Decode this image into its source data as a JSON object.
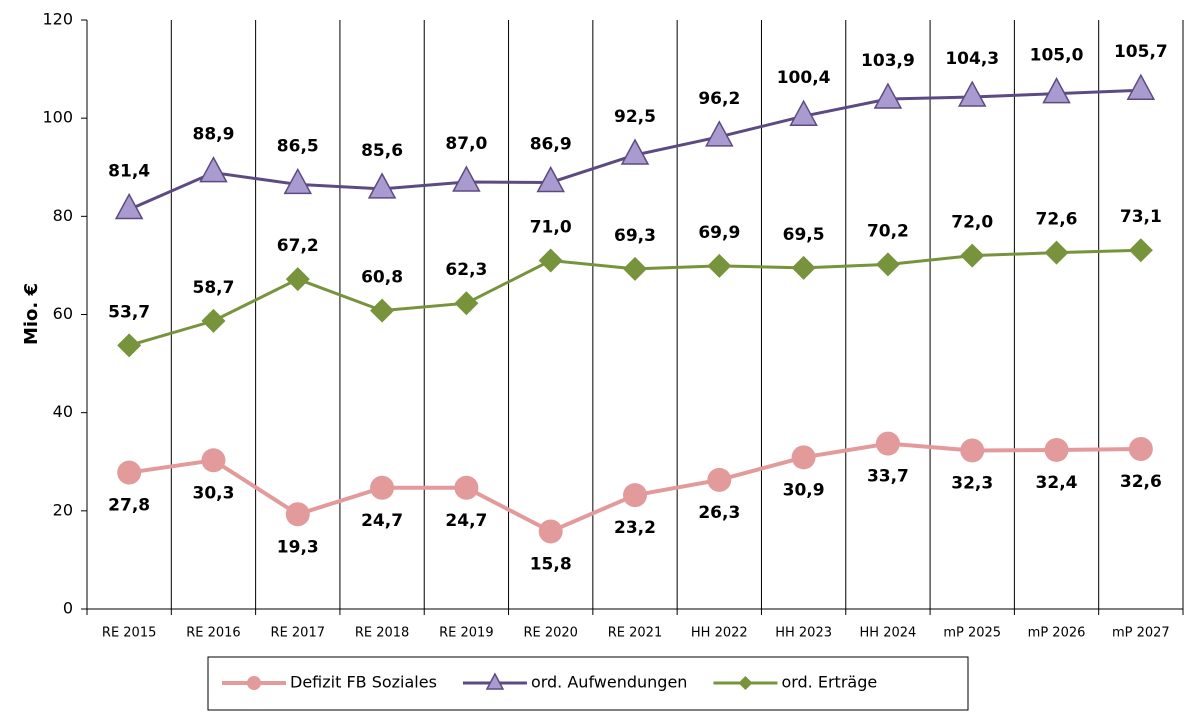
{
  "chart_data": {
    "type": "line",
    "y_label": "Mio. €",
    "categories": [
      "RE 2015",
      "RE 2016",
      "RE 2017",
      "RE 2018",
      "RE 2019",
      "RE 2020",
      "RE 2021",
      "HH 2022",
      "HH 2023",
      "HH 2024",
      "mP 2025",
      "mP 2026",
      "mP 2027"
    ],
    "series": [
      {
        "name": "Defizit FB Soziales",
        "color": "#e39a9b",
        "marker": "circle",
        "label_position": "below",
        "values": [
          27.8,
          30.3,
          19.3,
          24.7,
          24.7,
          15.8,
          23.2,
          26.3,
          30.9,
          33.7,
          32.3,
          32.4,
          32.6
        ],
        "value_labels": [
          "27,8",
          "30,3",
          "19,3",
          "24,7",
          "24,7",
          "15,8",
          "23,2",
          "26,3",
          "30,9",
          "33,7",
          "32,3",
          "32,4",
          "32,6"
        ]
      },
      {
        "name": "ord. Aufwendungen",
        "color": "#5d4a82",
        "marker_fill": "#a99bd0",
        "marker": "triangle",
        "label_position": "above",
        "values": [
          81.4,
          88.9,
          86.5,
          85.6,
          87.0,
          86.9,
          92.5,
          96.2,
          100.4,
          103.9,
          104.3,
          105.0,
          105.7
        ],
        "value_labels": [
          "81,4",
          "88,9",
          "86,5",
          "85,6",
          "87,0",
          "86,9",
          "92,5",
          "96,2",
          "100,4",
          "103,9",
          "104,3",
          "105,0",
          "105,7"
        ]
      },
      {
        "name": "ord. Erträge",
        "color": "#77933c",
        "marker": "diamond",
        "label_position": "above",
        "values": [
          53.7,
          58.7,
          67.2,
          60.8,
          62.3,
          71.0,
          69.3,
          69.9,
          69.5,
          70.2,
          72.0,
          72.6,
          73.1
        ],
        "value_labels": [
          "53,7",
          "58,7",
          "67,2",
          "60,8",
          "62,3",
          "71,0",
          "69,3",
          "69,9",
          "69,5",
          "70,2",
          "72,0",
          "72,6",
          "73,1"
        ]
      }
    ],
    "ylim": [
      0,
      120
    ],
    "yticks": [
      0,
      20,
      40,
      60,
      80,
      100,
      120
    ],
    "category_grid": true,
    "legend": "bottom"
  }
}
